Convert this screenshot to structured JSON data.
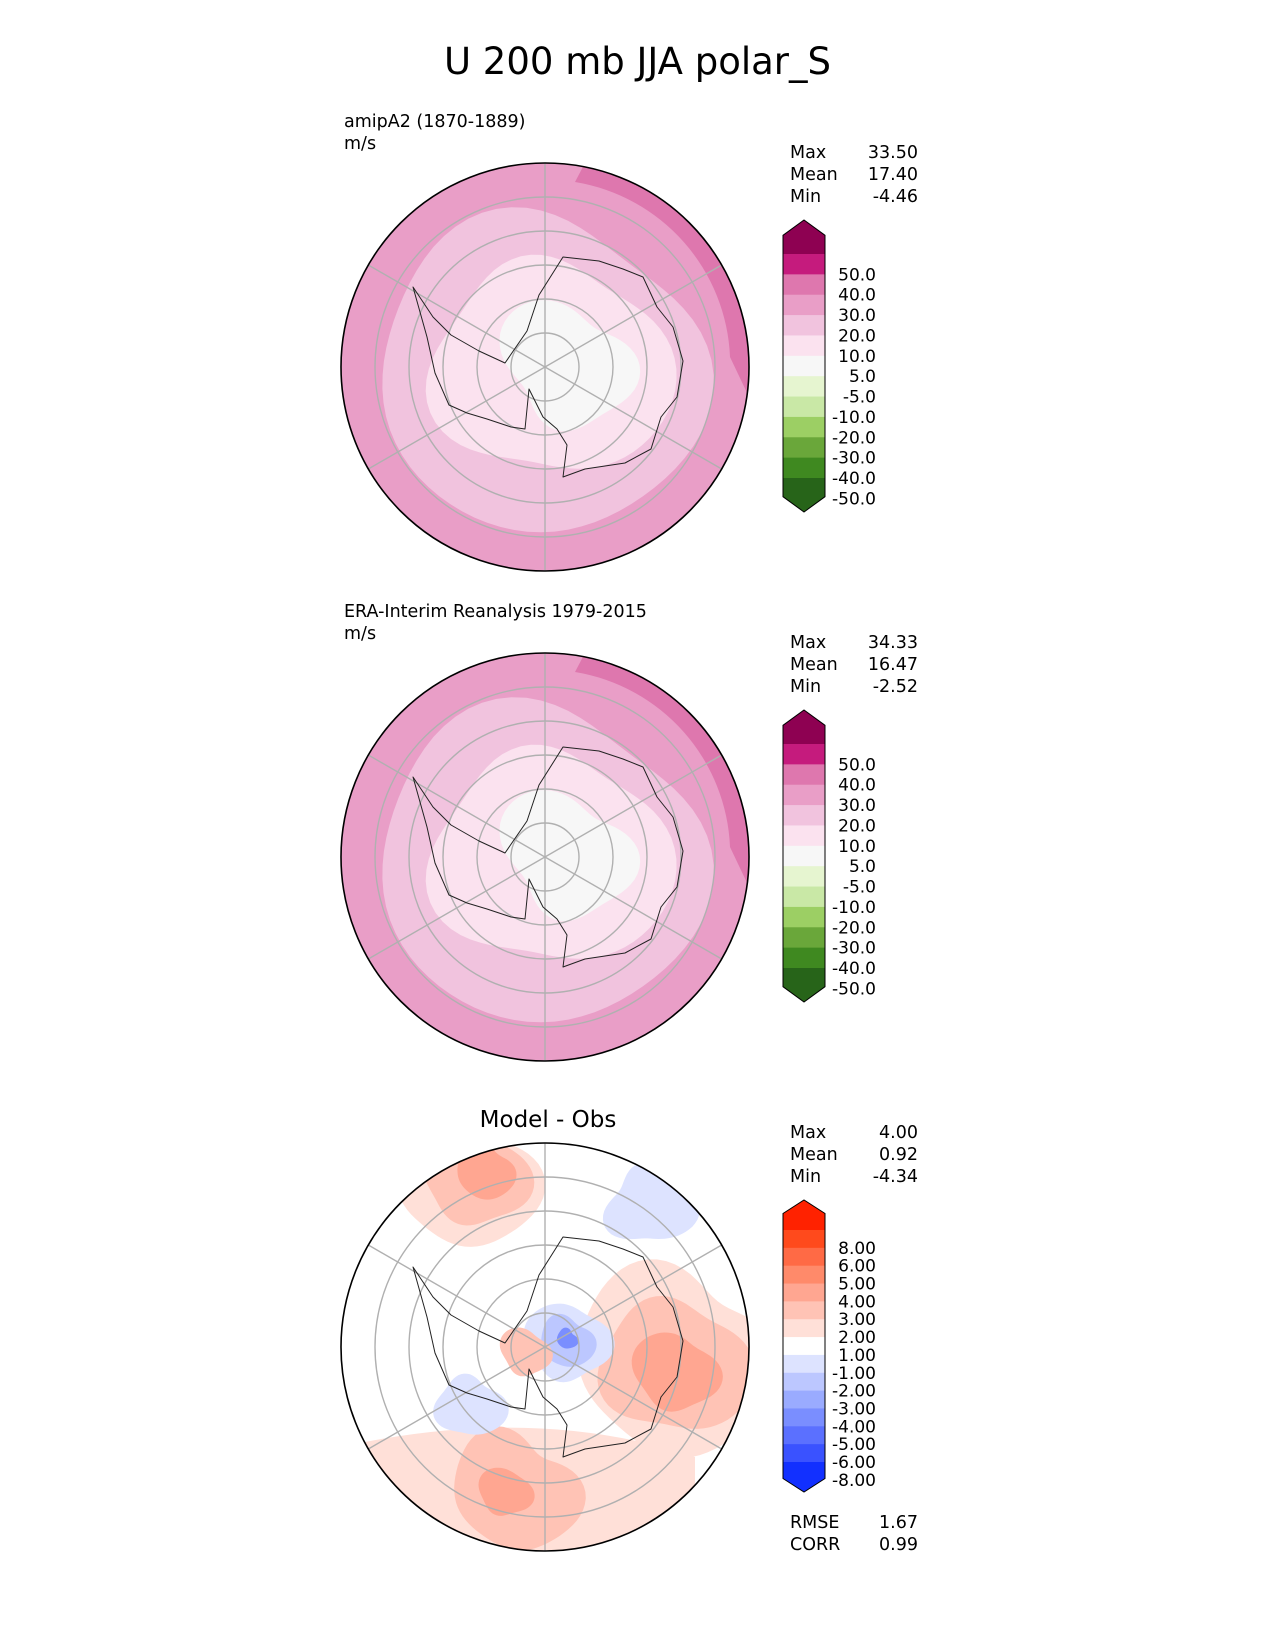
{
  "title": "U 200 mb JJA polar_S",
  "chart_data": [
    {
      "type": "heatmap",
      "projection": "south polar stereographic",
      "title": "amipA2 (1870-1889)",
      "units": "m/s",
      "stats": {
        "max": {
          "label": "Max",
          "value": "33.50"
        },
        "mean": {
          "label": "Mean",
          "value": "17.40"
        },
        "min": {
          "label": "Min",
          "value": "-4.46"
        }
      },
      "colorbar": {
        "levels": [
          "50.0",
          "40.0",
          "30.0",
          "20.0",
          "10.0",
          "5.0",
          "-5.0",
          "-10.0",
          "-20.0",
          "-30.0",
          "-40.0",
          "-50.0"
        ],
        "colors": [
          "#8e0152",
          "#c51b7d",
          "#de77ae",
          "#e99ec7",
          "#f1c3de",
          "#fbe2ef",
          "#f7f7f7",
          "#e6f5d0",
          "#c9e8a6",
          "#9ccf64",
          "#6aa73a",
          "#3f8920",
          "#276419"
        ]
      }
    },
    {
      "type": "heatmap",
      "projection": "south polar stereographic",
      "title": "ERA-Interim Reanalysis 1979-2015",
      "units": "m/s",
      "stats": {
        "max": {
          "label": "Max",
          "value": "34.33"
        },
        "mean": {
          "label": "Mean",
          "value": "16.47"
        },
        "min": {
          "label": "Min",
          "value": "-2.52"
        }
      },
      "colorbar": {
        "levels": [
          "50.0",
          "40.0",
          "30.0",
          "20.0",
          "10.0",
          "5.0",
          "-5.0",
          "-10.0",
          "-20.0",
          "-30.0",
          "-40.0",
          "-50.0"
        ],
        "colors": [
          "#8e0152",
          "#c51b7d",
          "#de77ae",
          "#e99ec7",
          "#f1c3de",
          "#fbe2ef",
          "#f7f7f7",
          "#e6f5d0",
          "#c9e8a6",
          "#9ccf64",
          "#6aa73a",
          "#3f8920",
          "#276419"
        ]
      }
    },
    {
      "type": "heatmap",
      "projection": "south polar stereographic",
      "title": "Model - Obs",
      "stats": {
        "max": {
          "label": "Max",
          "value": "4.00"
        },
        "mean": {
          "label": "Mean",
          "value": "0.92"
        },
        "min": {
          "label": "Min",
          "value": "-4.34"
        }
      },
      "metrics": {
        "rmse": {
          "label": "RMSE",
          "value": "1.67"
        },
        "corr": {
          "label": "CORR",
          "value": "0.99"
        }
      },
      "colorbar": {
        "levels": [
          "8.00",
          "6.00",
          "5.00",
          "4.00",
          "3.00",
          "2.00",
          "1.00",
          "-1.00",
          "-2.00",
          "-3.00",
          "-4.00",
          "-5.00",
          "-6.00",
          "-8.00"
        ],
        "colors": [
          "#ff2200",
          "#ff4a1c",
          "#ff6a45",
          "#ff8a6a",
          "#ffa691",
          "#ffc3b5",
          "#ffe0d8",
          "#ffffff",
          "#dde3ff",
          "#bcc7ff",
          "#9aabff",
          "#7a8eff",
          "#5b70ff",
          "#3a52ff",
          "#1230ff"
        ]
      }
    }
  ]
}
